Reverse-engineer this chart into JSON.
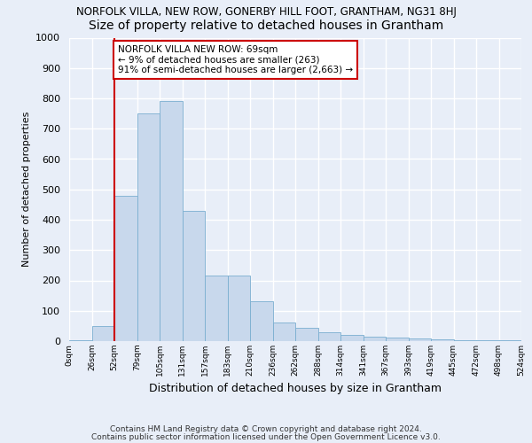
{
  "title": "NORFOLK VILLA, NEW ROW, GONERBY HILL FOOT, GRANTHAM, NG31 8HJ",
  "subtitle": "Size of property relative to detached houses in Grantham",
  "xlabel": "Distribution of detached houses by size in Grantham",
  "ylabel": "Number of detached properties",
  "bar_values": [
    3,
    50,
    480,
    750,
    790,
    430,
    215,
    215,
    130,
    60,
    45,
    30,
    20,
    15,
    12,
    8,
    5,
    4,
    3,
    2
  ],
  "bin_labels": [
    "0sqm",
    "26sqm",
    "52sqm",
    "79sqm",
    "105sqm",
    "131sqm",
    "157sqm",
    "183sqm",
    "210sqm",
    "236sqm",
    "262sqm",
    "288sqm",
    "314sqm",
    "341sqm",
    "367sqm",
    "393sqm",
    "419sqm",
    "445sqm",
    "472sqm",
    "498sqm",
    "524sqm"
  ],
  "bar_color": "#c8d8ec",
  "bar_edge_color": "#7aaed0",
  "property_bin_index": 2,
  "annotation_text": "NORFOLK VILLA NEW ROW: 69sqm\n← 9% of detached houses are smaller (263)\n91% of semi-detached houses are larger (2,663) →",
  "annotation_box_color": "#ffffff",
  "annotation_border_color": "#cc0000",
  "vline_color": "#cc0000",
  "ylim": [
    0,
    1000
  ],
  "yticks": [
    0,
    100,
    200,
    300,
    400,
    500,
    600,
    700,
    800,
    900,
    1000
  ],
  "footer1": "Contains HM Land Registry data © Crown copyright and database right 2024.",
  "footer2": "Contains public sector information licensed under the Open Government Licence v3.0.",
  "bg_color": "#e8eef8",
  "plot_bg_color": "#e8eef8",
  "grid_color": "#ffffff",
  "title_fontsize": 8.5,
  "subtitle_fontsize": 10
}
